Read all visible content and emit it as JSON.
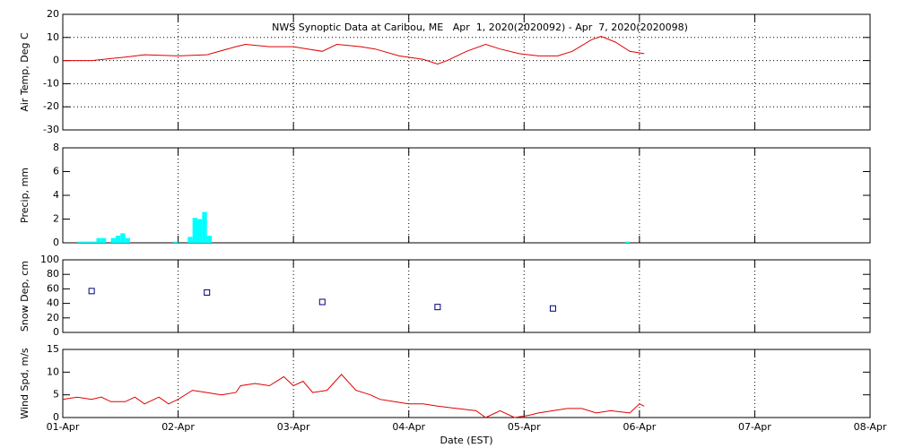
{
  "chart_data": [
    {
      "type": "line",
      "title": "NWS Synoptic Data at Caribou, ME   Apr  1, 2020(2020092) - Apr  7, 2020(2020098)",
      "ylabel": "Air Temp, Deg C",
      "color": "#e00000",
      "grid": "both",
      "xlim": [
        0,
        168
      ],
      "ylim": [
        -30,
        20
      ],
      "yticks": [
        -30,
        -20,
        -10,
        0,
        10,
        20
      ],
      "x": [
        0,
        6,
        13,
        17,
        24,
        30,
        36,
        38,
        43,
        48,
        51,
        54,
        57,
        62,
        65,
        70,
        75,
        78,
        80,
        84,
        88,
        91,
        95,
        99,
        103,
        106,
        110,
        112,
        115,
        118,
        121
      ],
      "values": [
        0,
        0,
        1.5,
        2.5,
        2,
        2.5,
        6,
        7,
        6,
        6,
        5,
        4,
        7,
        6,
        5,
        2,
        0.5,
        -1.5,
        0,
        4,
        7,
        5,
        3,
        2,
        2,
        4,
        9,
        10.5,
        8,
        4,
        3
      ]
    },
    {
      "type": "bar",
      "ylabel": "Precip, mm",
      "color": "#00ffff",
      "grid": "x",
      "xlim": [
        0,
        168
      ],
      "ylim": [
        0,
        8
      ],
      "yticks": [
        0,
        2,
        4,
        6,
        8
      ],
      "x": [
        3,
        4,
        5,
        6,
        7,
        8,
        10,
        11,
        12,
        13,
        23,
        26,
        27,
        28,
        29,
        30,
        117
      ],
      "values": [
        0.1,
        0.1,
        0.1,
        0.1,
        0.4,
        0.4,
        0.4,
        0.6,
        0.8,
        0.4,
        0.1,
        0.5,
        2.1,
        2.0,
        2.6,
        0.6,
        0.1
      ]
    },
    {
      "type": "scatter",
      "ylabel": "Snow Dep, cm",
      "color": "#000080",
      "grid": "x",
      "xlim": [
        0,
        168
      ],
      "ylim": [
        0,
        100
      ],
      "yticks": [
        0,
        20,
        40,
        60,
        80,
        100
      ],
      "x": [
        6,
        30,
        54,
        78,
        102
      ],
      "values": [
        57,
        55,
        42,
        35,
        33
      ]
    },
    {
      "type": "line",
      "ylabel": "Wind Spd, m/s",
      "xlabel": "Date (EST)",
      "color": "#e00000",
      "grid": "x",
      "xlim": [
        0,
        168
      ],
      "ylim": [
        0,
        15
      ],
      "yticks": [
        0,
        5,
        10,
        15
      ],
      "xticks": [
        {
          "value": 0,
          "label": "01-Apr"
        },
        {
          "value": 24,
          "label": "02-Apr"
        },
        {
          "value": 48,
          "label": "03-Apr"
        },
        {
          "value": 72,
          "label": "04-Apr"
        },
        {
          "value": 96,
          "label": "05-Apr"
        },
        {
          "value": 120,
          "label": "06-Apr"
        },
        {
          "value": 144,
          "label": "07-Apr"
        },
        {
          "value": 168,
          "label": "08-Apr"
        }
      ],
      "x": [
        0,
        3,
        6,
        8,
        10,
        13,
        15,
        17,
        20,
        22,
        24,
        27,
        30,
        33,
        36,
        37,
        40,
        43,
        46,
        48,
        50,
        52,
        55,
        58,
        61,
        64,
        66,
        69,
        72,
        75,
        78,
        82,
        86,
        88,
        91,
        94,
        97,
        99,
        102,
        105,
        108,
        111,
        114,
        118,
        120,
        121
      ],
      "values": [
        4,
        4.5,
        4,
        4.5,
        3.5,
        3.5,
        4.5,
        3,
        4.5,
        3,
        4,
        6,
        5.5,
        5,
        5.5,
        7,
        7.5,
        7,
        9,
        7,
        8,
        5.5,
        6,
        9.5,
        6,
        5,
        4,
        3.5,
        3,
        3,
        2.5,
        2,
        1.5,
        0,
        1.5,
        0,
        0.5,
        1,
        1.5,
        2,
        2,
        1,
        1.5,
        1,
        3,
        2.5
      ]
    }
  ]
}
